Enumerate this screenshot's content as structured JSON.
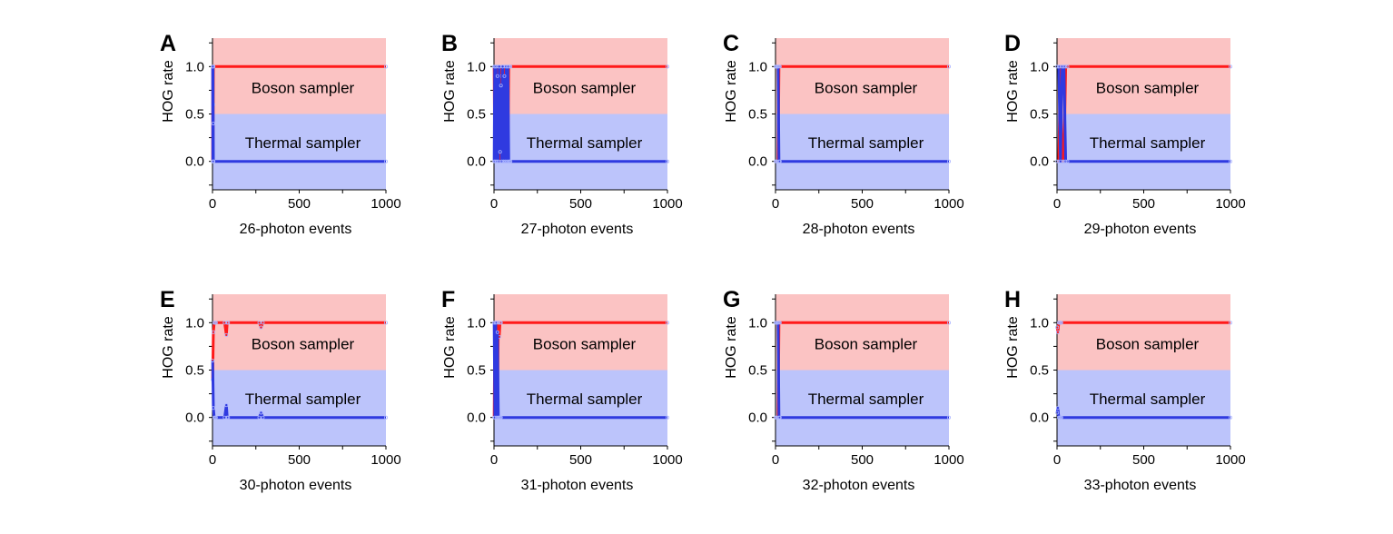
{
  "colors": {
    "boson_region": "#fbc3c3",
    "thermal_region": "#bcc4fb",
    "boson_line": "#ff1a1a",
    "thermal_line": "#2f3ae0",
    "marker": "#aab4ff"
  },
  "chart_data": [
    {
      "panel": "A",
      "type": "line",
      "xlabel": "26-photon events",
      "ylabel": "HOG rate",
      "xlim": [
        0,
        1000
      ],
      "ylim": [
        -0.3,
        1.3
      ],
      "xticks": [
        "0",
        "500",
        "1000"
      ],
      "yticks": [
        "0.0",
        "0.5",
        "1.0"
      ],
      "regions": [
        {
          "label": "Boson sampler",
          "y_range": [
            0.5,
            1.3
          ]
        },
        {
          "label": "Thermal sampler",
          "y_range": [
            -0.3,
            0.5
          ]
        }
      ],
      "series": [
        {
          "color": "boson",
          "x": [
            1,
            2,
            3,
            4,
            5,
            6,
            1000
          ],
          "y": [
            0.0,
            1.0,
            0.0,
            0.6,
            1.0,
            1.0,
            1.0
          ]
        },
        {
          "color": "thermal",
          "x": [
            1,
            2,
            3,
            4,
            5,
            6,
            1000
          ],
          "y": [
            1.0,
            0.0,
            1.0,
            0.4,
            0.0,
            0.0,
            0.0
          ]
        }
      ]
    },
    {
      "panel": "B",
      "type": "line",
      "xlabel": "27-photon events",
      "ylabel": "HOG rate",
      "xlim": [
        0,
        1000
      ],
      "ylim": [
        -0.3,
        1.3
      ],
      "xticks": [
        "0",
        "500",
        "1000"
      ],
      "yticks": [
        "0.0",
        "0.5",
        "1.0"
      ],
      "regions": [
        {
          "label": "Boson sampler",
          "y_range": [
            0.5,
            1.3
          ]
        },
        {
          "label": "Thermal sampler",
          "y_range": [
            -0.3,
            0.5
          ]
        }
      ],
      "series": [
        {
          "color": "boson",
          "x": [
            1,
            4,
            8,
            12,
            16,
            20,
            25,
            30,
            35,
            40,
            45,
            50,
            55,
            60,
            65,
            70,
            75,
            80,
            85,
            90,
            95,
            1000
          ],
          "y": [
            1.0,
            0.0,
            1.0,
            0.0,
            1.0,
            0.1,
            1.0,
            0.0,
            0.9,
            0.2,
            1.0,
            0.0,
            1.0,
            0.1,
            1.0,
            0.0,
            1.0,
            0.0,
            1.0,
            1.0,
            1.0,
            1.0
          ]
        },
        {
          "color": "thermal",
          "x": [
            1,
            4,
            8,
            12,
            16,
            20,
            25,
            30,
            35,
            40,
            45,
            50,
            55,
            60,
            65,
            70,
            75,
            80,
            85,
            90,
            95,
            1000
          ],
          "y": [
            0.0,
            1.0,
            0.0,
            1.0,
            0.0,
            0.9,
            0.0,
            1.0,
            0.1,
            0.8,
            0.0,
            1.0,
            0.0,
            0.9,
            0.0,
            1.0,
            0.0,
            1.0,
            0.0,
            0.0,
            0.0,
            0.0
          ]
        }
      ]
    },
    {
      "panel": "C",
      "type": "line",
      "xlabel": "28-photon events",
      "ylabel": "HOG rate",
      "xlim": [
        0,
        1000
      ],
      "ylim": [
        -0.3,
        1.3
      ],
      "xticks": [
        "0",
        "500",
        "1000"
      ],
      "yticks": [
        "0.0",
        "0.5",
        "1.0"
      ],
      "regions": [
        {
          "label": "Boson sampler",
          "y_range": [
            0.5,
            1.3
          ]
        },
        {
          "label": "Thermal sampler",
          "y_range": [
            -0.3,
            0.5
          ]
        }
      ],
      "series": [
        {
          "color": "boson",
          "x": [
            1,
            5,
            10,
            15,
            20,
            25,
            1000
          ],
          "y": [
            0.0,
            0.0,
            0.0,
            0.0,
            1.0,
            1.0,
            1.0
          ]
        },
        {
          "color": "thermal",
          "x": [
            1,
            5,
            10,
            15,
            20,
            25,
            1000
          ],
          "y": [
            1.0,
            1.0,
            1.0,
            1.0,
            0.0,
            0.0,
            0.0
          ]
        }
      ]
    },
    {
      "panel": "D",
      "type": "line",
      "xlabel": "29-photon events",
      "ylabel": "HOG rate",
      "xlim": [
        0,
        1000
      ],
      "ylim": [
        -0.3,
        1.3
      ],
      "xticks": [
        "0",
        "500",
        "1000"
      ],
      "yticks": [
        "0.0",
        "0.5",
        "1.0"
      ],
      "regions": [
        {
          "label": "Boson sampler",
          "y_range": [
            0.5,
            1.3
          ]
        },
        {
          "label": "Thermal sampler",
          "y_range": [
            -0.3,
            0.5
          ]
        }
      ],
      "series": [
        {
          "color": "boson",
          "x": [
            1,
            10,
            20,
            30,
            40,
            50,
            60,
            1000
          ],
          "y": [
            0.0,
            0.0,
            1.0,
            0.0,
            0.0,
            1.0,
            1.0,
            1.0
          ]
        },
        {
          "color": "thermal",
          "x": [
            1,
            10,
            20,
            30,
            40,
            50,
            60,
            1000
          ],
          "y": [
            1.0,
            1.0,
            0.0,
            1.0,
            1.0,
            0.0,
            0.0,
            0.0
          ]
        }
      ]
    },
    {
      "panel": "E",
      "type": "line",
      "xlabel": "30-photon events",
      "ylabel": "HOG rate",
      "xlim": [
        0,
        1000
      ],
      "ylim": [
        -0.3,
        1.3
      ],
      "xticks": [
        "0",
        "500",
        "1000"
      ],
      "yticks": [
        "0.0",
        "0.5",
        "1.0"
      ],
      "regions": [
        {
          "label": "Boson sampler",
          "y_range": [
            0.5,
            1.3
          ]
        },
        {
          "label": "Thermal sampler",
          "y_range": [
            -0.3,
            0.5
          ]
        }
      ],
      "series": [
        {
          "color": "boson",
          "x": [
            1,
            5,
            10,
            15,
            20,
            70,
            80,
            85,
            90,
            270,
            280,
            290,
            1000
          ],
          "y": [
            0.4,
            0.9,
            1.0,
            1.0,
            1.0,
            1.0,
            0.87,
            1.0,
            1.0,
            1.0,
            0.95,
            1.0,
            1.0
          ]
        },
        {
          "color": "thermal",
          "x": [
            1,
            5,
            10,
            15,
            20,
            70,
            80,
            85,
            90,
            270,
            280,
            290,
            1000
          ],
          "y": [
            0.6,
            0.1,
            0.0,
            0.0,
            0.0,
            0.0,
            0.13,
            0.0,
            0.0,
            0.0,
            0.05,
            0.0,
            0.0
          ]
        }
      ]
    },
    {
      "panel": "F",
      "type": "line",
      "xlabel": "31-photon events",
      "ylabel": "HOG rate",
      "xlim": [
        0,
        1000
      ],
      "ylim": [
        -0.3,
        1.3
      ],
      "xticks": [
        "0",
        "500",
        "1000"
      ],
      "yticks": [
        "0.0",
        "0.5",
        "1.0"
      ],
      "regions": [
        {
          "label": "Boson sampler",
          "y_range": [
            0.5,
            1.3
          ]
        },
        {
          "label": "Thermal sampler",
          "y_range": [
            -0.3,
            0.5
          ]
        }
      ],
      "series": [
        {
          "color": "boson",
          "x": [
            1,
            5,
            10,
            15,
            20,
            25,
            30,
            35,
            40,
            1000
          ],
          "y": [
            0.0,
            1.0,
            0.0,
            1.0,
            0.1,
            1.0,
            0.85,
            1.0,
            1.0,
            1.0
          ]
        },
        {
          "color": "thermal",
          "x": [
            1,
            5,
            10,
            15,
            20,
            25,
            30,
            35,
            40,
            1000
          ],
          "y": [
            1.0,
            0.0,
            1.0,
            0.0,
            0.9,
            0.0,
            0.0,
            0.0,
            0.0,
            0.0
          ]
        }
      ]
    },
    {
      "panel": "G",
      "type": "line",
      "xlabel": "32-photon events",
      "ylabel": "HOG rate",
      "xlim": [
        0,
        1000
      ],
      "ylim": [
        -0.3,
        1.3
      ],
      "xticks": [
        "0",
        "500",
        "1000"
      ],
      "yticks": [
        "0.0",
        "0.5",
        "1.0"
      ],
      "regions": [
        {
          "label": "Boson sampler",
          "y_range": [
            0.5,
            1.3
          ]
        },
        {
          "label": "Thermal sampler",
          "y_range": [
            -0.3,
            0.5
          ]
        }
      ],
      "series": [
        {
          "color": "boson",
          "x": [
            1,
            5,
            10,
            15,
            20,
            25,
            1000
          ],
          "y": [
            0.0,
            0.0,
            0.0,
            0.0,
            1.0,
            1.0,
            1.0
          ]
        },
        {
          "color": "thermal",
          "x": [
            1,
            5,
            10,
            15,
            20,
            25,
            1000
          ],
          "y": [
            1.0,
            1.0,
            1.0,
            1.0,
            0.0,
            0.0,
            0.0
          ]
        }
      ]
    },
    {
      "panel": "H",
      "type": "line",
      "xlabel": "33-photon events",
      "ylabel": "HOG rate",
      "xlim": [
        0,
        1000
      ],
      "ylim": [
        -0.3,
        1.3
      ],
      "xticks": [
        "0",
        "500",
        "1000"
      ],
      "yticks": [
        "0.0",
        "0.5",
        "1.0"
      ],
      "regions": [
        {
          "label": "Boson sampler",
          "y_range": [
            0.5,
            1.3
          ]
        },
        {
          "label": "Thermal sampler",
          "y_range": [
            -0.3,
            0.5
          ]
        }
      ],
      "series": [
        {
          "color": "boson",
          "x": [
            1,
            5,
            10,
            15,
            20,
            25,
            1000
          ],
          "y": [
            0.95,
            0.9,
            1.0,
            1.0,
            1.0,
            1.0,
            1.0
          ]
        },
        {
          "color": "thermal",
          "x": [
            1,
            5,
            10,
            15,
            20,
            25,
            1000
          ],
          "y": [
            0.05,
            0.1,
            0.0,
            0.0,
            0.0,
            0.0,
            0.0
          ]
        }
      ]
    }
  ]
}
